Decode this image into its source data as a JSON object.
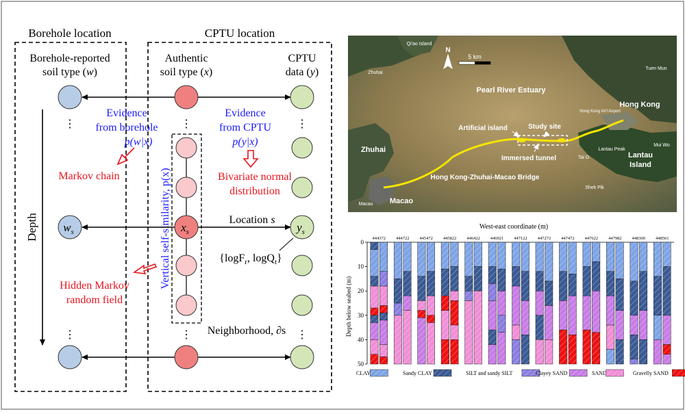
{
  "diagram": {
    "header_borehole": "Borehole location",
    "header_cptu": "CPTU location",
    "col_w_line1": "Borehole-reported",
    "col_w_line2": "soil type (",
    "col_w_var": "w",
    "col_x_line1": "Authentic",
    "col_x_line2": "soil type (",
    "col_x_var": "x",
    "col_y_line1": "CPTU",
    "col_y_line2": "data (",
    "col_y_var": "y",
    "evidence_borehole_l1": "Evidence",
    "evidence_borehole_l2": "from borehole",
    "evidence_borehole_eq": "p(w|x)",
    "evidence_cptu_l1": "Evidence",
    "evidence_cptu_l2": "from CPTU",
    "evidence_cptu_eq": "p(y|x)",
    "markov_chain": "Markov chain",
    "bivariate_l1": "Bivariate normal",
    "bivariate_l2": "distribution",
    "vertical_similarity": "Vertical self-similarity, p(x)",
    "location_label": "Location s",
    "cptu_params": "{logF",
    "cptu_params_sub1": "r",
    "cptu_params_mid": ", logQ",
    "cptu_params_sub2": "t",
    "cptu_params_end": "}",
    "node_w": "w",
    "node_x": "x",
    "node_y": "y",
    "node_sub": "s",
    "depth_label": "Depth",
    "hmrf_l1": "Hidden Markov",
    "hmrf_l2": "random field",
    "neighborhood": "Neighborhood, ∂s",
    "ellipsis": "⋮",
    "colors": {
      "w_node": "#b7cce6",
      "x_node": "#f08080",
      "x_node_light": "#f9c9cc",
      "y_node": "#d4e6b8",
      "blue_text": "#1a1aff",
      "red_text": "#e8141e"
    }
  },
  "map": {
    "labels": {
      "qiao": "Qi'ao Island",
      "zhuhai_small": "Zhuhai",
      "scale": "5 km",
      "north": "N",
      "tuen_mun": "Tuen Mun",
      "pearl_river": "Pearl River Estuary",
      "hong_kong": "Hong Kong",
      "hk_airport": "Hong Kong Int'l Airport",
      "artificial_island": "Artificial island",
      "study_site": "Study site",
      "zhuhai": "Zhuhai",
      "immersed_tunnel": "Immersed tunnel",
      "tai_o": "Tai O",
      "lantau_peak": "Lantau Peak",
      "lantau_island_l1": "Lantau",
      "lantau_island_l2": "Island",
      "mui_wo": "Mui Wo",
      "bridge": "Hong Kong-Zhuhai-Macao Bridge",
      "shek_pik": "Shek Pik",
      "macao": "Macao",
      "macau_small": "Macau"
    }
  },
  "chart_data": {
    "type": "stacked-column",
    "title": "West-east coordinate (m)",
    "ylabel": "Depth below seabed (m)",
    "ylim": [
      0,
      50
    ],
    "yticks": [
      0,
      10,
      20,
      30,
      40,
      50
    ],
    "categories": [
      "444372",
      "444722",
      "445472",
      "445822",
      "446422",
      "446921",
      "447122",
      "447272",
      "447472",
      "447622",
      "447982",
      "448300",
      "448561"
    ],
    "legend": [
      {
        "key": "CLAY",
        "label": "CLAY",
        "color": "#7ea4e6"
      },
      {
        "key": "SCLAY",
        "label": "Sandy CLAY",
        "color": "#3a5a94"
      },
      {
        "key": "SILT",
        "label": "SILT and sandy SILT",
        "color": "#8a7ee0"
      },
      {
        "key": "CSAND",
        "label": "Clayey SAND",
        "color": "#c87ce6"
      },
      {
        "key": "SAND",
        "label": "SAND",
        "color": "#f08ed6"
      },
      {
        "key": "GSAND",
        "label": "Gravelly SAND",
        "color": "#ee1010"
      }
    ],
    "columns": [
      {
        "name": "444372",
        "a": [
          [
            "SCLAY",
            0,
            3
          ],
          [
            "CLAY",
            3,
            14
          ],
          [
            "SCLAY",
            14,
            18
          ],
          [
            "SAND",
            18,
            27
          ],
          [
            "GSAND",
            27,
            30
          ],
          [
            "SCLAY",
            30,
            33
          ],
          [
            "CSAND",
            33,
            40
          ],
          [
            "SAND",
            40,
            46
          ],
          [
            "GSAND",
            46,
            50
          ]
        ],
        "b": [
          [
            "CLAY",
            0,
            12
          ],
          [
            "SILT",
            12,
            18
          ],
          [
            "SAND",
            18,
            26
          ],
          [
            "GSAND",
            26,
            29
          ],
          [
            "SCLAY",
            29,
            32
          ],
          [
            "CSAND",
            32,
            42
          ],
          [
            "SAND",
            42,
            47
          ],
          [
            "GSAND",
            47,
            50
          ]
        ]
      },
      {
        "name": "444722",
        "a": [
          [
            "CLAY",
            0,
            15
          ],
          [
            "SCLAY",
            15,
            25
          ],
          [
            "SILT",
            25,
            30
          ],
          [
            "SAND",
            30,
            50
          ]
        ],
        "b": [
          [
            "CLAY",
            0,
            12
          ],
          [
            "SCLAY",
            12,
            22
          ],
          [
            "CSAND",
            22,
            28
          ],
          [
            "SAND",
            28,
            50
          ]
        ]
      },
      {
        "name": "445472",
        "a": [
          [
            "CLAY",
            0,
            14
          ],
          [
            "SCLAY",
            14,
            24
          ],
          [
            "SAND",
            24,
            28
          ],
          [
            "GSAND",
            28,
            31
          ],
          [
            "CSAND",
            31,
            50
          ]
        ],
        "b": [
          [
            "CLAY",
            0,
            12
          ],
          [
            "SCLAY",
            12,
            22
          ],
          [
            "SAND",
            22,
            30
          ],
          [
            "GSAND",
            30,
            33
          ],
          [
            "SAND",
            33,
            50
          ]
        ]
      },
      {
        "name": "445822",
        "a": [
          [
            "CLAY",
            0,
            11
          ],
          [
            "SCLAY",
            11,
            22
          ],
          [
            "GSAND",
            22,
            28
          ],
          [
            "SAND",
            28,
            40
          ],
          [
            "GSAND",
            40,
            50
          ]
        ],
        "b": [
          [
            "CLAY",
            0,
            10
          ],
          [
            "SCLAY",
            10,
            20
          ],
          [
            "SAND",
            20,
            24
          ],
          [
            "GSAND",
            24,
            34
          ],
          [
            "SAND",
            34,
            40
          ],
          [
            "GSAND",
            40,
            50
          ]
        ]
      },
      {
        "name": "446422",
        "a": [
          [
            "CLAY",
            0,
            14
          ],
          [
            "SCLAY",
            14,
            20
          ],
          [
            "SILT",
            20,
            24
          ],
          [
            "SAND",
            24,
            50
          ]
        ],
        "b": [
          [
            "CLAY",
            0,
            10
          ],
          [
            "SCLAY",
            10,
            20
          ],
          [
            "SAND",
            20,
            50
          ]
        ]
      },
      {
        "name": "446921",
        "a": [
          [
            "CLAY",
            0,
            10
          ],
          [
            "SCLAY",
            10,
            17
          ],
          [
            "SILT",
            17,
            24
          ],
          [
            "CSAND",
            24,
            36
          ],
          [
            "SCLAY",
            36,
            42
          ],
          [
            "CSAND",
            42,
            50
          ]
        ],
        "b": [
          [
            "CLAY",
            0,
            11
          ],
          [
            "SCLAY",
            11,
            20
          ],
          [
            "CSAND",
            20,
            30
          ],
          [
            "SILT",
            30,
            37
          ],
          [
            "CSAND",
            37,
            50
          ]
        ]
      },
      {
        "name": "447122",
        "a": [
          [
            "CLAY",
            0,
            10
          ],
          [
            "SCLAY",
            10,
            18
          ],
          [
            "CSAND",
            18,
            34
          ],
          [
            "SAND",
            34,
            40
          ],
          [
            "SILT",
            40,
            50
          ]
        ],
        "b": [
          [
            "CLAY",
            0,
            12
          ],
          [
            "SCLAY",
            12,
            24
          ],
          [
            "CSAND",
            24,
            38
          ],
          [
            "SCLAY",
            38,
            50
          ]
        ]
      },
      {
        "name": "447272",
        "a": [
          [
            "CLAY",
            0,
            12
          ],
          [
            "SCLAY",
            12,
            20
          ],
          [
            "CSAND",
            20,
            30
          ],
          [
            "SCLAY",
            30,
            40
          ],
          [
            "SAND",
            40,
            50
          ]
        ],
        "b": [
          [
            "CLAY",
            0,
            16
          ],
          [
            "SCLAY",
            16,
            26
          ],
          [
            "CSAND",
            26,
            40
          ],
          [
            "SAND",
            40,
            50
          ]
        ]
      },
      {
        "name": "447472",
        "a": [
          [
            "CLAY",
            0,
            12
          ],
          [
            "SCLAY",
            12,
            24
          ],
          [
            "CSAND",
            24,
            36
          ],
          [
            "GSAND",
            36,
            50
          ]
        ],
        "b": [
          [
            "CLAY",
            0,
            13
          ],
          [
            "SCLAY",
            13,
            22
          ],
          [
            "CSAND",
            22,
            38
          ],
          [
            "GSAND",
            38,
            50
          ]
        ]
      },
      {
        "name": "447622",
        "a": [
          [
            "CLAY",
            0,
            10
          ],
          [
            "SCLAY",
            10,
            22
          ],
          [
            "CSAND",
            22,
            36
          ],
          [
            "GSAND",
            36,
            50
          ]
        ],
        "b": [
          [
            "CLAY",
            0,
            8
          ],
          [
            "SCLAY",
            8,
            20
          ],
          [
            "CSAND",
            20,
            37
          ],
          [
            "GSAND",
            37,
            50
          ]
        ]
      },
      {
        "name": "447982",
        "a": [
          [
            "CLAY",
            0,
            12
          ],
          [
            "SCLAY",
            12,
            22
          ],
          [
            "CSAND",
            22,
            34
          ],
          [
            "SAND",
            34,
            44
          ],
          [
            "CLAY",
            44,
            50
          ]
        ],
        "b": [
          [
            "CLAY",
            0,
            15
          ],
          [
            "SCLAY",
            15,
            28
          ],
          [
            "CSAND",
            28,
            40
          ],
          [
            "SCLAY",
            40,
            50
          ]
        ]
      },
      {
        "name": "448300",
        "a": [
          [
            "CLAY",
            0,
            16
          ],
          [
            "SCLAY",
            16,
            30
          ],
          [
            "CSAND",
            30,
            38
          ],
          [
            "SCLAY",
            38,
            48
          ],
          [
            "SILT",
            48,
            50
          ]
        ],
        "b": [
          [
            "CLAY",
            0,
            12
          ],
          [
            "SCLAY",
            12,
            28
          ],
          [
            "CSAND",
            28,
            40
          ],
          [
            "SCLAY",
            40,
            50
          ]
        ]
      },
      {
        "name": "448561",
        "a": [
          [
            "CLAY",
            0,
            14
          ],
          [
            "SCLAY",
            14,
            30
          ],
          [
            "CLAY",
            30,
            40
          ],
          [
            "CSAND",
            40,
            50
          ]
        ],
        "b": [
          [
            "CLAY",
            0,
            10
          ],
          [
            "SCLAY",
            10,
            30
          ],
          [
            "CSAND",
            30,
            42
          ],
          [
            "GSAND",
            42,
            46
          ],
          [
            "CSAND",
            46,
            50
          ]
        ]
      }
    ]
  }
}
